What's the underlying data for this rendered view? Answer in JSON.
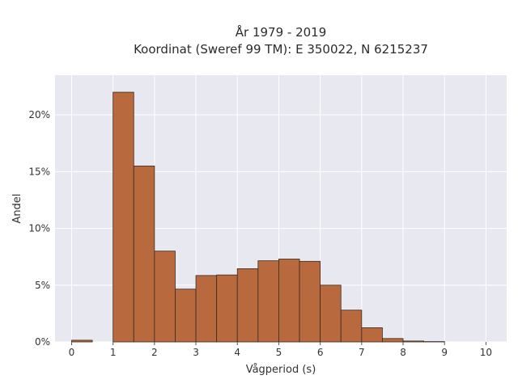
{
  "chart_data": {
    "type": "bar",
    "title_lines": [
      "År 1979 - 2019",
      "Koordinat (Sweref 99 TM): E 350022, N 6215237"
    ],
    "xlabel": "Vågperiod (s)",
    "ylabel": "Andel",
    "xlim": [
      -0.4,
      10.5
    ],
    "ylim": [
      0,
      23.5
    ],
    "x_ticks": [
      0,
      1,
      2,
      3,
      4,
      5,
      6,
      7,
      8,
      9,
      10
    ],
    "x_tick_labels": [
      "0",
      "1",
      "2",
      "3",
      "4",
      "5",
      "6",
      "7",
      "8",
      "9",
      "10"
    ],
    "y_ticks": [
      0,
      5,
      10,
      15,
      20
    ],
    "y_tick_labels": [
      "0%",
      "5%",
      "10%",
      "15%",
      "20%"
    ],
    "bin_width": 0.5,
    "bins_start": [
      0,
      1,
      1.5,
      2,
      2.5,
      3,
      3.5,
      4,
      4.5,
      5,
      5.5,
      6,
      6.5,
      7,
      7.5,
      8,
      8.5
    ],
    "values": [
      0.15,
      22.0,
      15.5,
      8.0,
      4.65,
      5.85,
      5.9,
      6.45,
      7.15,
      7.3,
      7.1,
      5.0,
      2.8,
      1.25,
      0.3,
      0.08,
      0.03
    ],
    "bar_color": "#b8693e",
    "bar_edge_color": "#3a2a20",
    "plot_background": "#e8e8f1",
    "grid_color": "#ffffff",
    "grid": true
  }
}
